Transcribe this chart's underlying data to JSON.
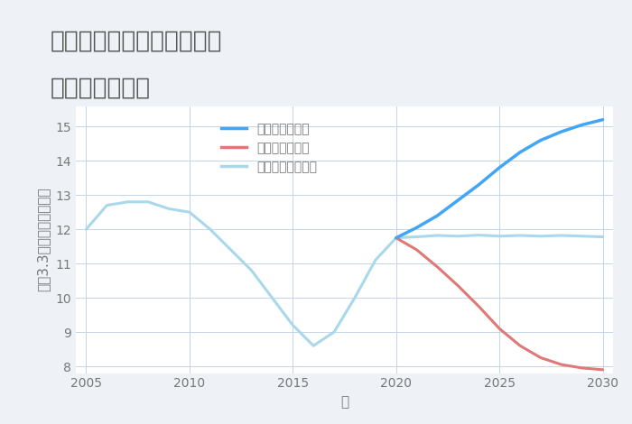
{
  "title_line1": "兵庫県丹波市春日町稲塚の",
  "title_line2": "土地の価格推移",
  "xlabel": "年",
  "ylabel": "坪（3.3㎡）単価（万円）",
  "background_color": "#eef2f7",
  "plot_bg_color": "#ffffff",
  "grid_color": "#c5d5e5",
  "normal_scenario": {
    "x": [
      2005,
      2006,
      2007,
      2008,
      2009,
      2010,
      2011,
      2012,
      2013,
      2014,
      2015,
      2016,
      2017,
      2018,
      2019,
      2020,
      2021,
      2022,
      2023,
      2024,
      2025,
      2026,
      2027,
      2028,
      2029,
      2030
    ],
    "y": [
      12.0,
      12.7,
      12.8,
      12.8,
      12.6,
      12.5,
      12.0,
      11.4,
      10.8,
      10.0,
      9.2,
      8.6,
      9.0,
      10.0,
      11.1,
      11.75,
      11.78,
      11.82,
      11.8,
      11.83,
      11.8,
      11.82,
      11.8,
      11.82,
      11.8,
      11.78
    ],
    "color": "#a8d8ea",
    "label": "ノーマルシナリオ",
    "linewidth": 2.2
  },
  "good_scenario": {
    "x": [
      2020,
      2021,
      2022,
      2023,
      2024,
      2025,
      2026,
      2027,
      2028,
      2029,
      2030
    ],
    "y": [
      11.75,
      12.05,
      12.4,
      12.85,
      13.3,
      13.8,
      14.25,
      14.6,
      14.85,
      15.05,
      15.2
    ],
    "color": "#42a5f5",
    "label": "グッドシナリオ",
    "linewidth": 2.5
  },
  "bad_scenario": {
    "x": [
      2020,
      2021,
      2022,
      2023,
      2024,
      2025,
      2026,
      2027,
      2028,
      2029,
      2030
    ],
    "y": [
      11.75,
      11.4,
      10.9,
      10.35,
      9.75,
      9.1,
      8.6,
      8.25,
      8.05,
      7.95,
      7.9
    ],
    "color": "#e07878",
    "label": "バッドシナリオ",
    "linewidth": 2.2
  },
  "ylim": [
    7.8,
    15.6
  ],
  "xlim": [
    2004.5,
    2030.5
  ],
  "yticks": [
    8,
    9,
    10,
    11,
    12,
    13,
    14,
    15
  ],
  "xticks": [
    2005,
    2010,
    2015,
    2020,
    2025,
    2030
  ],
  "title_fontsize": 19,
  "axis_fontsize": 11,
  "tick_fontsize": 10,
  "legend_fontsize": 10,
  "title_color": "#555555",
  "tick_color": "#777777"
}
